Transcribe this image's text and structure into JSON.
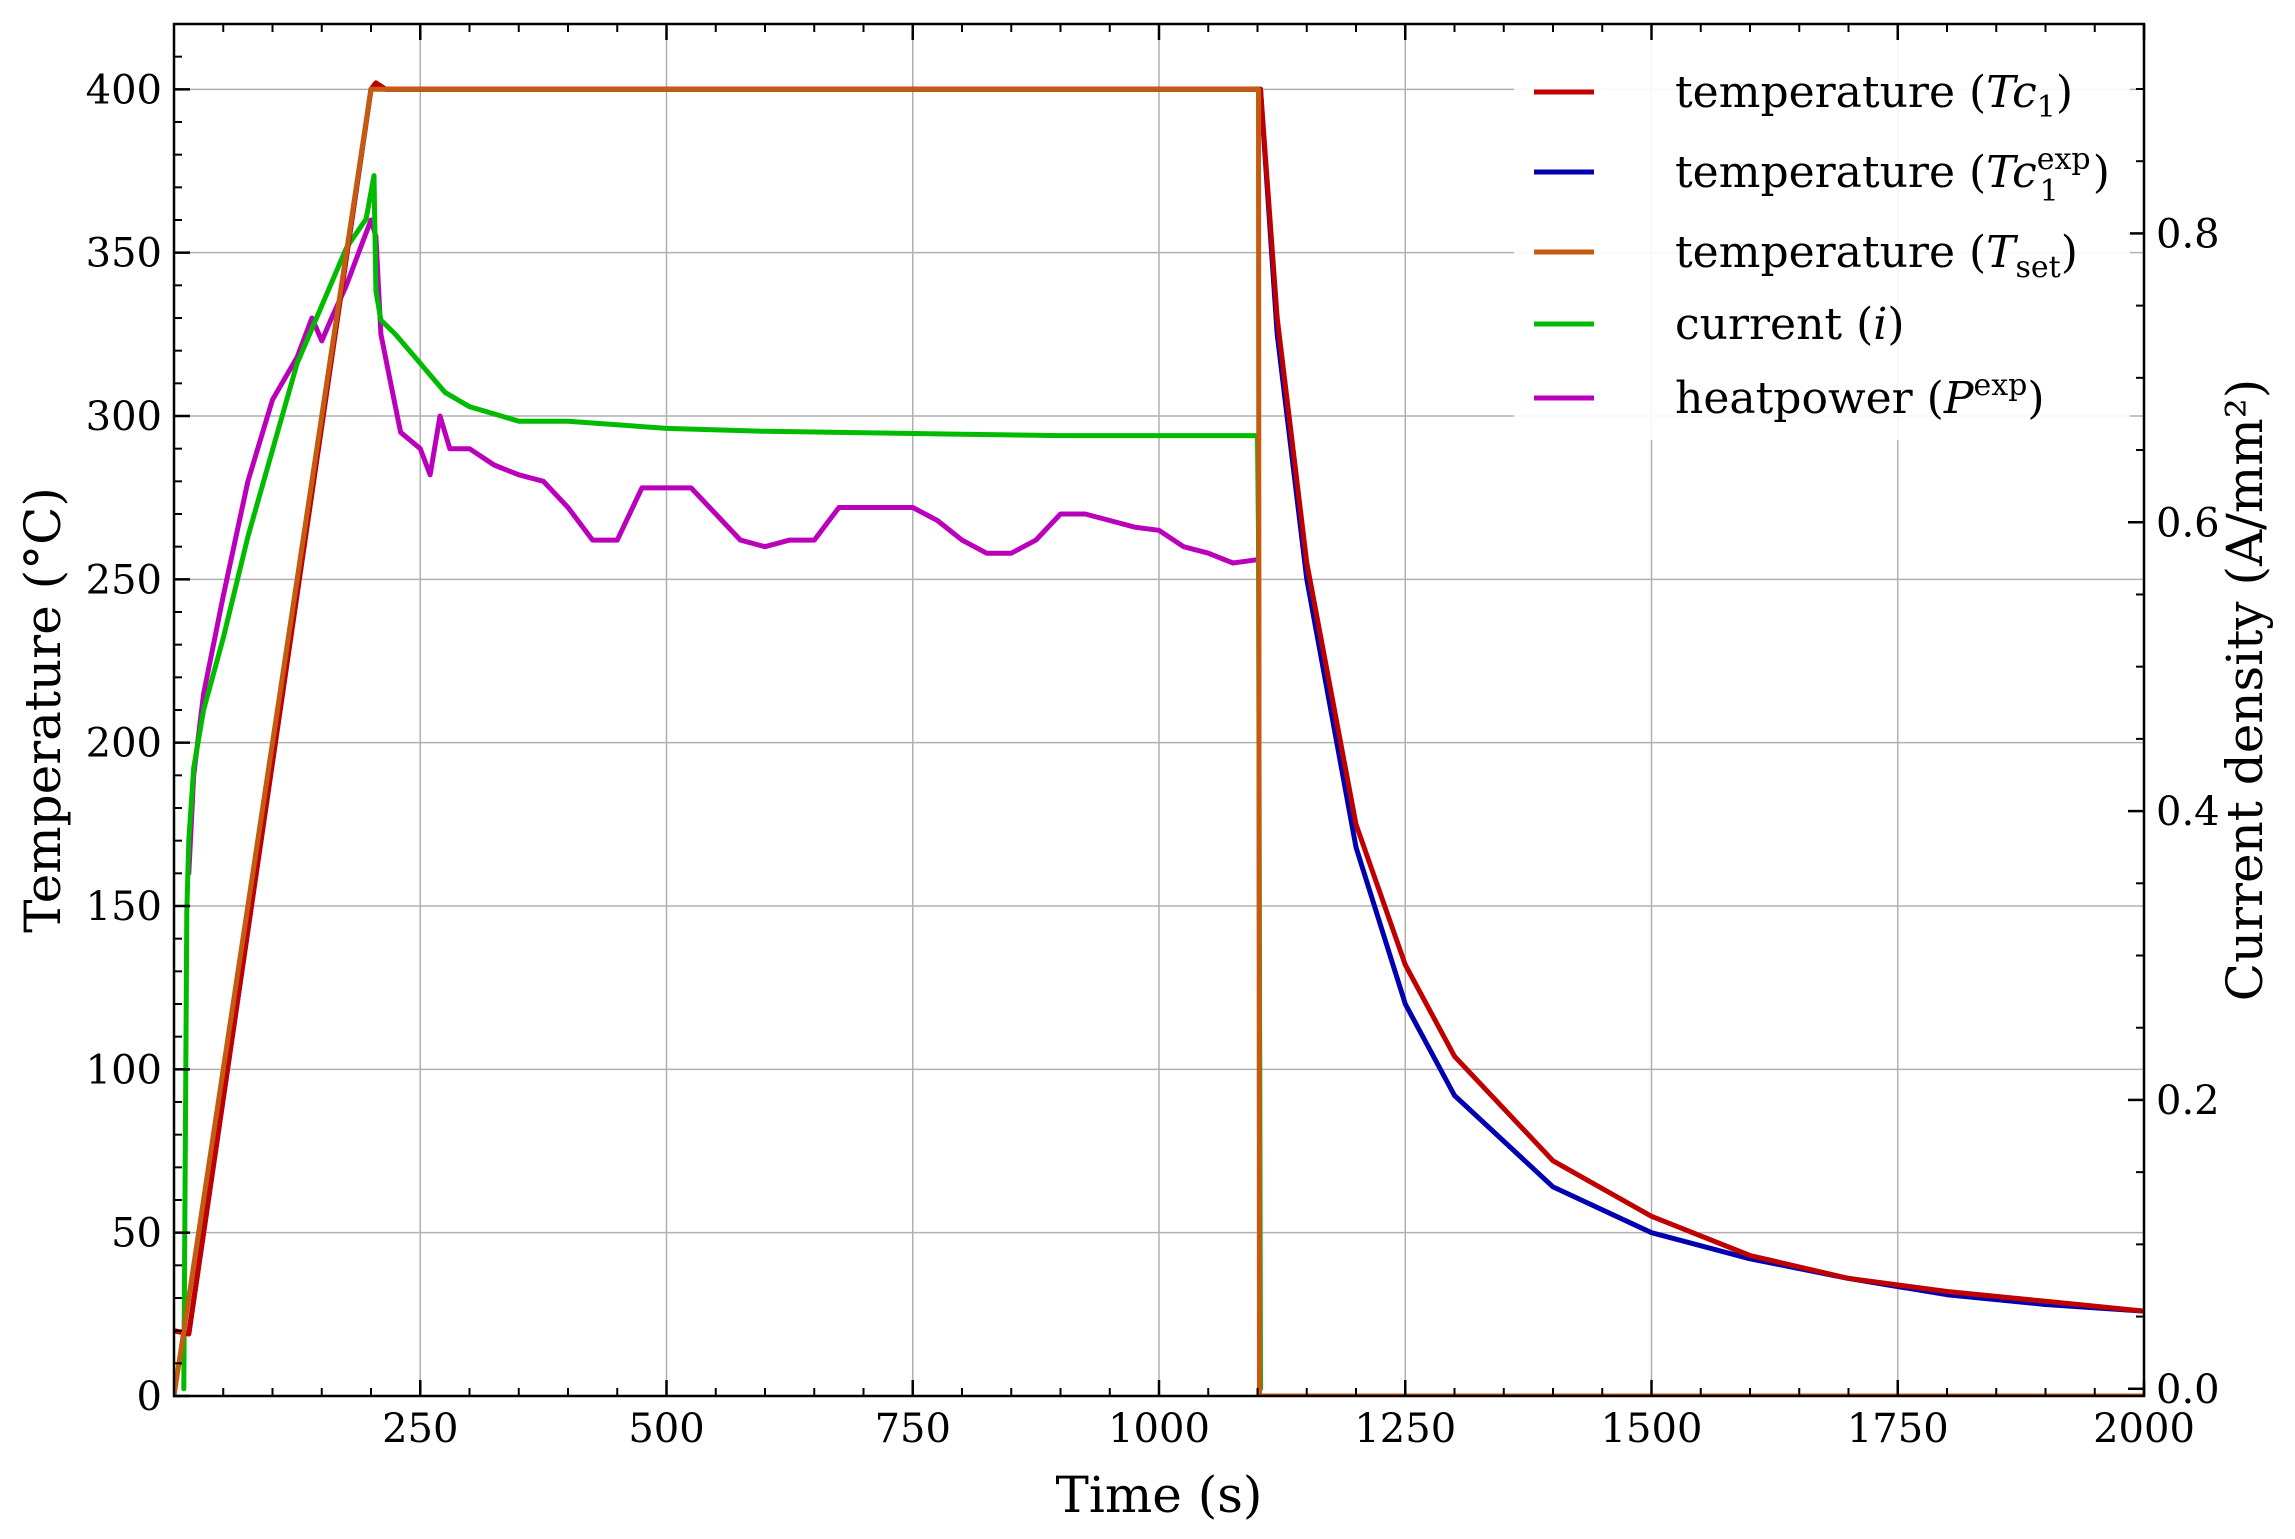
{
  "chart_data": {
    "type": "line",
    "title": "",
    "xlabel": "Time (s)",
    "ylabel": "Temperature (°C)",
    "y2label": "Current density (A/mm²)",
    "xlim": [
      0,
      2000
    ],
    "ylim": [
      0,
      420
    ],
    "y2lim": [
      -0.005,
      0.945
    ],
    "xticks": [
      250,
      500,
      750,
      1000,
      1250,
      1500,
      1750,
      2000
    ],
    "xtick_labels": [
      "250",
      "500",
      "750",
      "1000",
      "1250",
      "1500",
      "1750",
      "2000"
    ],
    "yticks": [
      0,
      50,
      100,
      150,
      200,
      250,
      300,
      350,
      400
    ],
    "ytick_labels": [
      "0",
      "50",
      "100",
      "150",
      "200",
      "250",
      "300",
      "350",
      "400"
    ],
    "y2ticks": [
      0.0,
      0.2,
      0.4,
      0.6,
      0.8
    ],
    "y2tick_labels": [
      "0.0",
      "0.2",
      "0.4",
      "0.6",
      "0.8"
    ],
    "grid": true,
    "legend_position": "top-right",
    "series": [
      {
        "name": "temperature (Tc1)",
        "legend_main": "temperature (",
        "legend_var": "Tc",
        "legend_sub": "1",
        "legend_sup": "",
        "legend_end": ")",
        "color": "#c00000",
        "axis": "left",
        "x": [
          0,
          15,
          200,
          205,
          215,
          1000,
          1100,
          1103,
          1120,
          1150,
          1200,
          1250,
          1300,
          1400,
          1500,
          1600,
          1700,
          1800,
          1900,
          2000
        ],
        "y": [
          20,
          19,
          400,
          402,
          400,
          400,
          400,
          400,
          330,
          255,
          175,
          132,
          104,
          72,
          55,
          43,
          36,
          32,
          29,
          26
        ]
      },
      {
        "name": "temperature (Tc1exp)",
        "legend_main": "temperature (",
        "legend_var": "Tc",
        "legend_sub": "1",
        "legend_sup": "exp",
        "legend_end": ")",
        "color": "#0000b0",
        "axis": "left",
        "x": [
          0,
          15,
          200,
          205,
          215,
          1000,
          1100,
          1103,
          1120,
          1150,
          1200,
          1250,
          1300,
          1400,
          1500,
          1600,
          1700,
          1800,
          1900,
          2000
        ],
        "y": [
          20,
          19,
          400,
          401,
          400,
          400,
          400,
          400,
          325,
          250,
          168,
          120,
          92,
          64,
          50,
          42,
          36,
          31,
          28,
          26
        ]
      },
      {
        "name": "temperature (Tset)",
        "legend_main": "temperature (",
        "legend_var": "T",
        "legend_sub": "set",
        "legend_sup": "",
        "legend_end": ")",
        "color": "#c55a11",
        "axis": "left",
        "x": [
          0,
          200,
          210,
          1100,
          1101,
          1102,
          1103,
          2000
        ],
        "y": [
          0,
          400,
          400,
          400,
          400,
          0,
          0,
          0
        ]
      },
      {
        "name": "current (i)",
        "legend_main": "current (",
        "legend_var": "i",
        "legend_sub": "",
        "legend_sup": "",
        "legend_end": ")",
        "color": "#00bb00",
        "axis": "right",
        "x": [
          10,
          13,
          15,
          20,
          30,
          50,
          75,
          100,
          125,
          150,
          175,
          195,
          203,
          205,
          210,
          225,
          250,
          275,
          300,
          350,
          400,
          500,
          600,
          700,
          800,
          900,
          1000,
          1100,
          1101,
          1103
        ],
        "y": [
          0,
          0.33,
          0.38,
          0.43,
          0.47,
          0.52,
          0.59,
          0.65,
          0.71,
          0.75,
          0.79,
          0.81,
          0.84,
          0.76,
          0.74,
          0.73,
          0.71,
          0.69,
          0.68,
          0.67,
          0.67,
          0.665,
          0.663,
          0.662,
          0.661,
          0.66,
          0.66,
          0.66,
          0.59,
          0
        ]
      },
      {
        "name": "heatpower (Pexp)",
        "legend_main": "heatpower (",
        "legend_var": "P",
        "legend_sub": "",
        "legend_sup": "exp",
        "legend_end": ")",
        "color": "#bb00bb",
        "axis": "left",
        "x": [
          15,
          20,
          30,
          50,
          75,
          100,
          125,
          140,
          150,
          160,
          175,
          190,
          200,
          205,
          210,
          220,
          230,
          250,
          260,
          270,
          280,
          300,
          325,
          350,
          375,
          400,
          425,
          450,
          475,
          500,
          525,
          550,
          575,
          600,
          625,
          650,
          675,
          700,
          725,
          750,
          775,
          800,
          825,
          850,
          875,
          900,
          925,
          950,
          975,
          1000,
          1025,
          1050,
          1075,
          1100
        ],
        "y": [
          160,
          190,
          215,
          245,
          280,
          305,
          318,
          330,
          323,
          330,
          340,
          352,
          360,
          355,
          325,
          310,
          295,
          290,
          282,
          300,
          290,
          290,
          285,
          282,
          280,
          272,
          262,
          262,
          278,
          278,
          278,
          270,
          262,
          260,
          262,
          262,
          272,
          272,
          272,
          272,
          268,
          262,
          258,
          258,
          262,
          270,
          270,
          268,
          266,
          265,
          260,
          258,
          255,
          256
        ]
      }
    ]
  }
}
